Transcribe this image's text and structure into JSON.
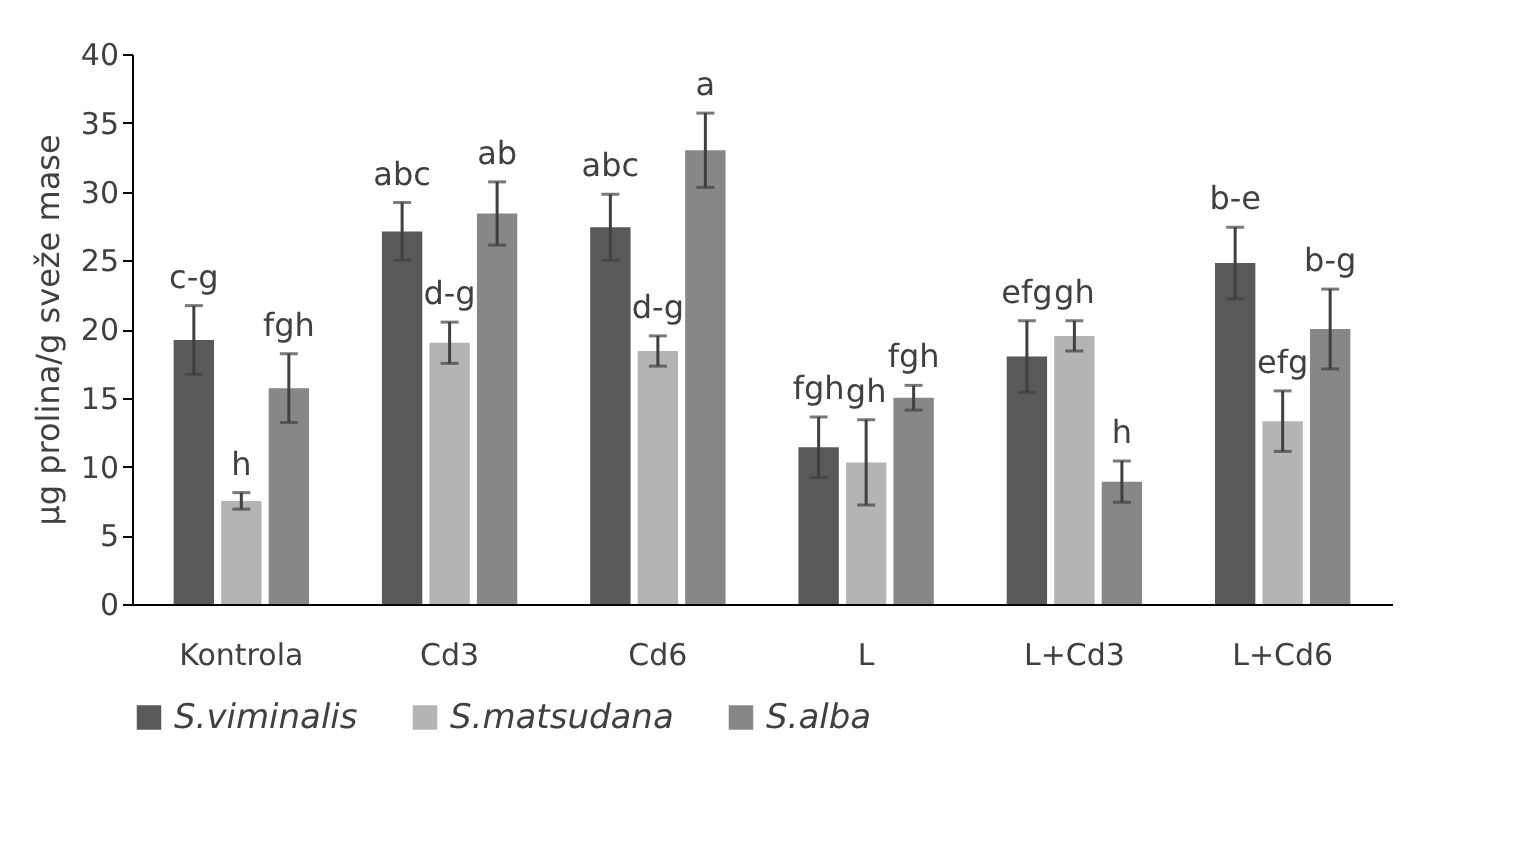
{
  "chart_data": {
    "type": "bar",
    "ylabel": "µg prolina/g sveže mase",
    "categories": [
      "Kontrola",
      "Cd3",
      "Cd6",
      "L",
      "L+Cd3",
      "L+Cd6"
    ],
    "series": [
      {
        "name": "S.viminalis",
        "color": "#595959",
        "values": [
          19.2,
          27.1,
          27.4,
          11.4,
          18.0,
          24.8
        ],
        "errors": [
          2.5,
          2.1,
          2.4,
          2.2,
          2.6,
          2.6
        ],
        "value_labels": [
          "c-g",
          "abc",
          "abc",
          "fgh",
          "efg",
          "b-e"
        ]
      },
      {
        "name": "S.matsudana",
        "color": "#b4b4b4",
        "values": [
          7.5,
          19.0,
          18.4,
          10.3,
          19.5,
          13.3
        ],
        "errors": [
          0.6,
          1.5,
          1.1,
          3.1,
          1.1,
          2.2
        ],
        "value_labels": [
          "h",
          "d-g",
          "d-g",
          "gh",
          "gh",
          "efg"
        ]
      },
      {
        "name": "S.alba",
        "color": "#878787",
        "values": [
          15.7,
          28.4,
          33.0,
          15.0,
          8.9,
          20.0
        ],
        "errors": [
          2.5,
          2.3,
          2.7,
          0.9,
          1.5,
          2.9
        ],
        "value_labels": [
          "fgh",
          "ab",
          "a",
          "fgh",
          "h",
          "b-g"
        ]
      }
    ],
    "ylim": [
      0,
      40
    ],
    "yticks": [
      0,
      5,
      10,
      15,
      20,
      25,
      30,
      35,
      40
    ],
    "grid": false,
    "legend": "bottom"
  }
}
